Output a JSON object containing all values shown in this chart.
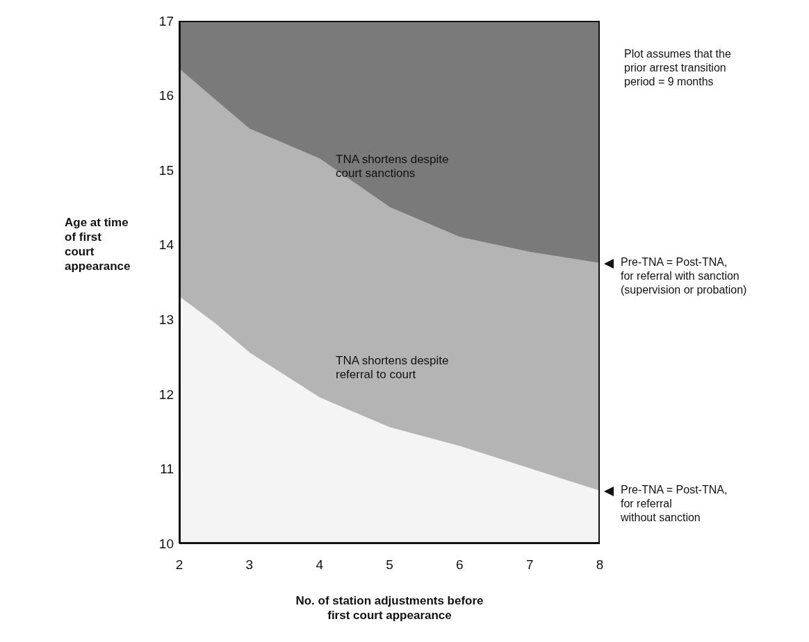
{
  "chart_data": {
    "type": "area",
    "xlabel": "No. of station adjustments before\nfirst court appearance",
    "ylabel": "Age at time\nof first\ncourt\nappearance",
    "x": [
      2,
      2.5,
      3,
      4,
      5,
      6,
      7,
      8
    ],
    "series": [
      {
        "color": "#b4b4b4",
        "values": [
          16.35,
          15.95,
          15.55,
          15.15,
          14.5,
          14.1,
          13.9,
          13.75
        ]
      },
      {
        "color": "#f4f4f4",
        "values": [
          13.3,
          12.95,
          12.55,
          11.95,
          11.55,
          11.3,
          11.0,
          10.7
        ]
      }
    ],
    "bands": [
      {
        "axis": "y",
        "from": 10,
        "to": 17,
        "color": "#7a7a7a"
      }
    ],
    "xlim": [
      2,
      8
    ],
    "xticks": [
      2,
      3,
      4,
      5,
      6,
      7,
      8
    ],
    "ylim": [
      10,
      17
    ],
    "yticks": [
      10,
      11,
      12,
      13,
      14,
      15,
      16,
      17
    ],
    "legend": false,
    "grid": false,
    "annotations": [
      "Plot assumes that the\nprior arrest transition\nperiod = 9 months",
      "TNA shortens despite\ncourt sanctions",
      "TNA shortens despite\nreferral to court",
      {
        "text": "Pre-TNA = Post-TNA,\nfor referral with sanction\n(supervision or probation)",
        "x": 8,
        "y": 13.75
      },
      {
        "text": "Pre-TNA = Post-TNA,\nfor referral\nwithout sanction",
        "x": 8,
        "y": 10.7
      }
    ]
  }
}
